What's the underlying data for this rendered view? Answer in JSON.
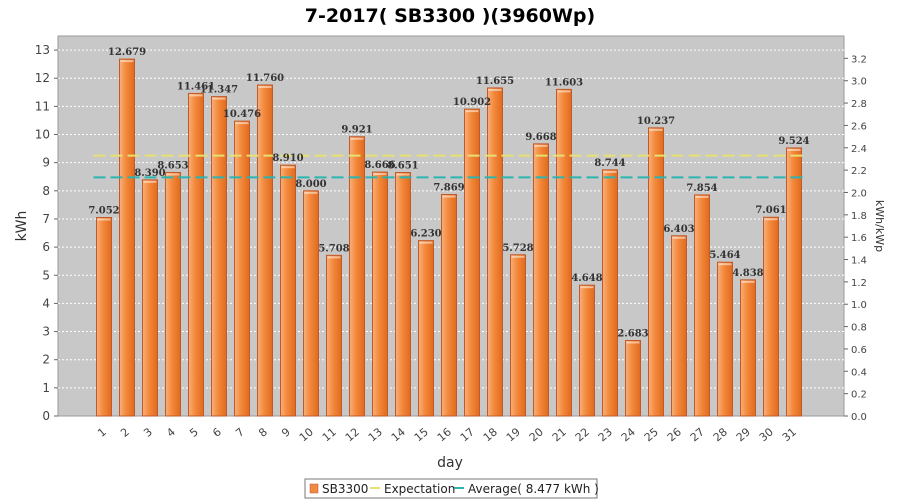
{
  "chart_data": {
    "type": "bar",
    "title": "7-2017( SB3300 )(3960Wp)",
    "xlabel": "day",
    "ylabel": "kWh",
    "y2label": "kWh/kWp",
    "ylim": [
      0,
      13.5
    ],
    "y2lim": [
      0,
      3.4
    ],
    "yticks": [
      0,
      1,
      2,
      3,
      4,
      5,
      6,
      7,
      8,
      9,
      10,
      11,
      12,
      13
    ],
    "y2ticks": [
      "0.0",
      "0.2",
      "0.4",
      "0.6",
      "0.8",
      "1.0",
      "1.2",
      "1.4",
      "1.6",
      "1.8",
      "2.0",
      "2.2",
      "2.4",
      "2.6",
      "2.8",
      "3.0",
      "3.2"
    ],
    "grid": true,
    "categories": [
      "1",
      "2",
      "3",
      "4",
      "5",
      "6",
      "7",
      "8",
      "9",
      "10",
      "11",
      "12",
      "13",
      "14",
      "15",
      "16",
      "17",
      "18",
      "19",
      "20",
      "21",
      "22",
      "23",
      "24",
      "25",
      "26",
      "27",
      "28",
      "29",
      "30",
      "31"
    ],
    "series": [
      {
        "name": "SB3300",
        "values": [
          7.052,
          12.679,
          8.39,
          8.653,
          11.461,
          11.347,
          10.476,
          11.76,
          8.91,
          8.0,
          5.708,
          9.921,
          8.666,
          8.651,
          6.23,
          7.869,
          10.902,
          11.655,
          5.728,
          9.668,
          11.603,
          4.648,
          8.744,
          2.683,
          10.237,
          6.403,
          7.854,
          5.464,
          4.838,
          7.061,
          9.524
        ],
        "labels": [
          "7.052",
          "12.679",
          "8.390",
          "8.653",
          "11.461",
          "11.347",
          "10.476",
          "11.760",
          "8.910",
          "8.000",
          "5.708",
          "9.921",
          "8.666",
          "8.651",
          "6.230",
          "7.869",
          "10.902",
          "11.655",
          "5.728",
          "9.668",
          "11.603",
          "4.648",
          "8.744",
          "2.683",
          "10.237",
          "6.403",
          "7.854",
          "5.464",
          "4.838",
          "7.061",
          "9.524"
        ],
        "color": "#f08a3c"
      }
    ],
    "expectation": {
      "name": "Expectation",
      "value": 9.25,
      "color": "#e8e070"
    },
    "average": {
      "name": "Average( 8.477 kWh )",
      "value": 8.477,
      "color": "#2bb5b0"
    },
    "legend_position": "bottom-center",
    "plot_background": "#c8c8c8"
  }
}
